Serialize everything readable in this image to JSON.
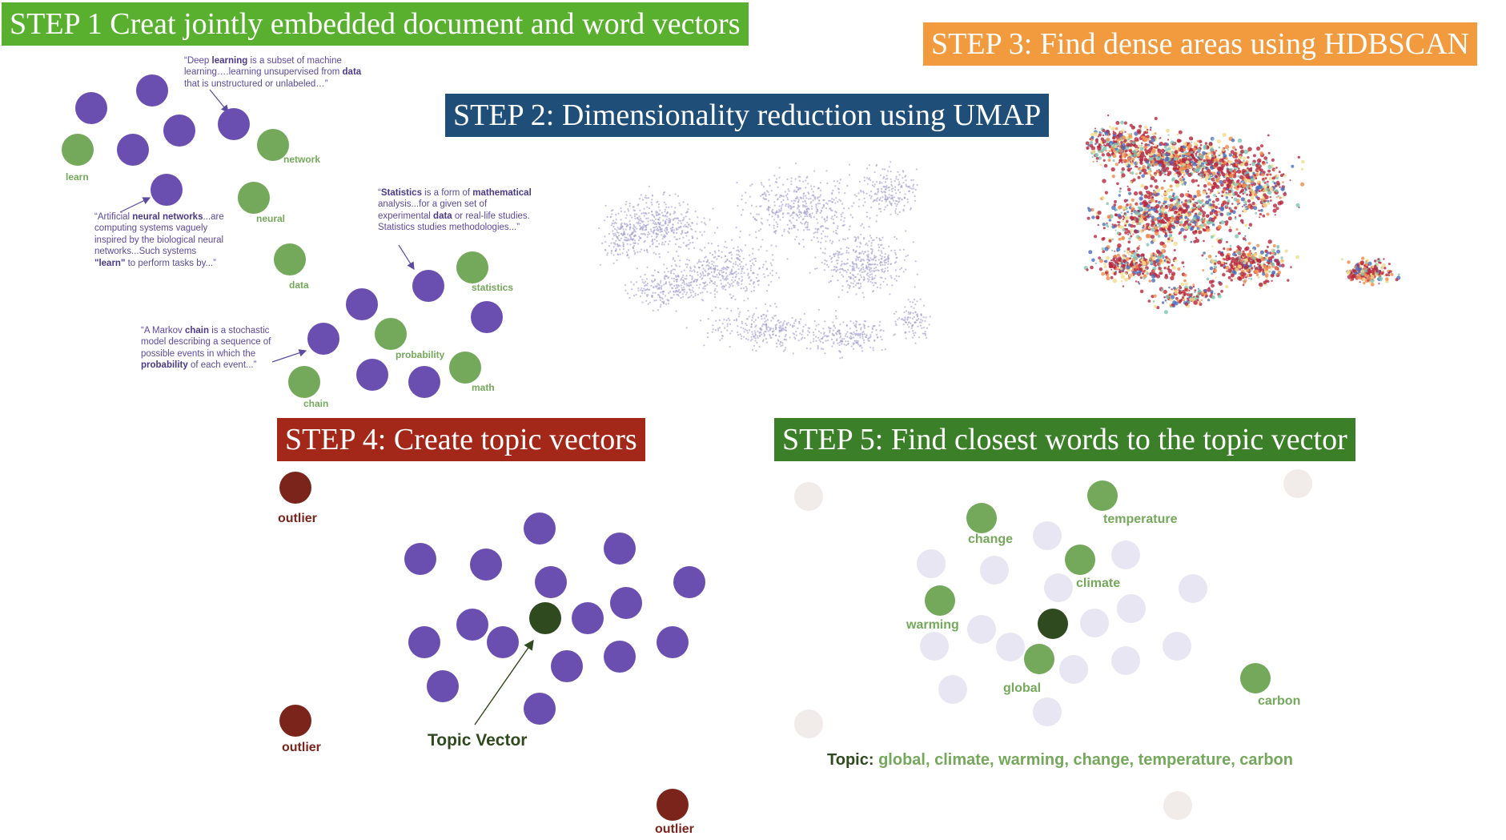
{
  "steps": [
    {
      "label": "STEP 1 Creat jointly embedded document and word vectors",
      "color": "#59b02f"
    },
    {
      "label": "STEP 2: Dimensionality reduction using UMAP",
      "color": "#1f4e79"
    },
    {
      "label": "STEP 3: Find dense areas using HDBSCAN",
      "color": "#f19a3e"
    },
    {
      "label": "STEP 4: Create topic vectors",
      "color": "#a3281a"
    },
    {
      "label": "STEP 5: Find closest words to the topic vector",
      "color": "#3b7f28"
    }
  ],
  "step1": {
    "words": [
      "learn",
      "network",
      "neural",
      "data",
      "statistics",
      "probability",
      "math",
      "chain"
    ],
    "snippets": {
      "deep_learning": [
        "“Deep ",
        "learning",
        " is a subset of machine learning….learning unsupervised from ",
        "data",
        " that is unstructured or unlabeled…”"
      ],
      "neural": [
        "“Artificial ",
        "neural networks",
        "...are computing systems vaguely inspired by the biological neural networks...Such systems ",
        "\"learn\"",
        " to perform tasks by...”"
      ],
      "statistics": [
        "“",
        "Statistics",
        " is a form of ",
        "mathematical",
        " analysis...for a given set of experimental ",
        "data",
        " or real-life studies. Statistics studies methodologies...”"
      ],
      "markov": [
        "“A Markov ",
        "chain",
        " is a stochastic model describing a sequence of possible events in which the ",
        "probability",
        " of each event...”"
      ]
    }
  },
  "step4": {
    "outlier_label": "outlier",
    "topic_vector_label": "Topic Vector"
  },
  "step5": {
    "words": [
      "temperature",
      "change",
      "climate",
      "warming",
      "global",
      "carbon"
    ],
    "topic_prefix": "Topic:",
    "topic_words": "global, climate, warming, change, temperature, carbon"
  },
  "colors": {
    "document": "#6a4fb0",
    "word": "#74a85a",
    "outlier": "#7b241c",
    "topic_vector": "#2f4a1e",
    "faded_word": "#e8e6f2",
    "faded_doc": "#f1ebea",
    "umap_points": "#a49fd0",
    "cluster_red": "#b8283f",
    "cluster_yellow": "#f3dc8a",
    "cluster_blue": "#4a6fbf",
    "cluster_teal": "#7ec5b5",
    "cluster_orange": "#f28a4a"
  }
}
